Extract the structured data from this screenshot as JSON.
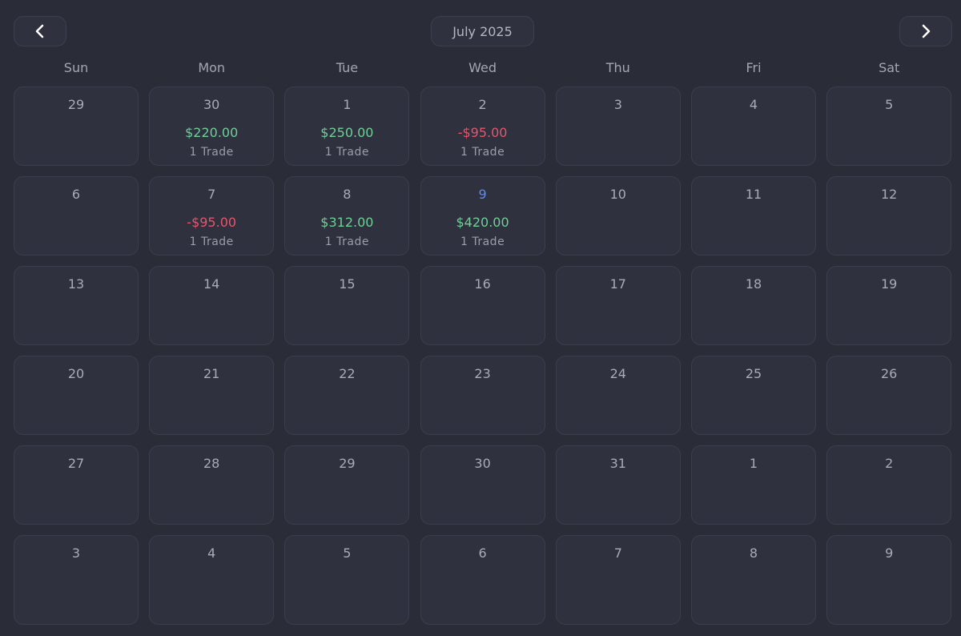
{
  "header": {
    "title": "July 2025"
  },
  "weekdays": [
    "Sun",
    "Mon",
    "Tue",
    "Wed",
    "Thu",
    "Fri",
    "Sat"
  ],
  "weeks": [
    [
      {
        "day": "29"
      },
      {
        "day": "30",
        "pnl": "$220.00",
        "trades": "1 Trade"
      },
      {
        "day": "1",
        "pnl": "$250.00",
        "trades": "1 Trade"
      },
      {
        "day": "2",
        "pnl": "-$95.00",
        "trades": "1 Trade"
      },
      {
        "day": "3"
      },
      {
        "day": "4"
      },
      {
        "day": "5"
      }
    ],
    [
      {
        "day": "6"
      },
      {
        "day": "7",
        "pnl": "-$95.00",
        "trades": "1 Trade"
      },
      {
        "day": "8",
        "pnl": "$312.00",
        "trades": "1 Trade"
      },
      {
        "day": "9",
        "pnl": "$420.00",
        "trades": "1 Trade",
        "color": "#5b8def"
      },
      {
        "day": "10"
      },
      {
        "day": "11"
      },
      {
        "day": "12"
      }
    ],
    [
      {
        "day": "13"
      },
      {
        "day": "14"
      },
      {
        "day": "15"
      },
      {
        "day": "16"
      },
      {
        "day": "17"
      },
      {
        "day": "18"
      },
      {
        "day": "19"
      }
    ],
    [
      {
        "day": "20"
      },
      {
        "day": "21"
      },
      {
        "day": "22"
      },
      {
        "day": "23"
      },
      {
        "day": "24"
      },
      {
        "day": "25"
      },
      {
        "day": "26"
      }
    ],
    [
      {
        "day": "27"
      },
      {
        "day": "28"
      },
      {
        "day": "29"
      },
      {
        "day": "30"
      },
      {
        "day": "31"
      },
      {
        "day": "1"
      },
      {
        "day": "2"
      }
    ],
    [
      {
        "day": "3"
      },
      {
        "day": "4"
      },
      {
        "day": "5"
      },
      {
        "day": "6"
      },
      {
        "day": "7"
      },
      {
        "day": "8"
      },
      {
        "day": "9"
      }
    ]
  ]
}
